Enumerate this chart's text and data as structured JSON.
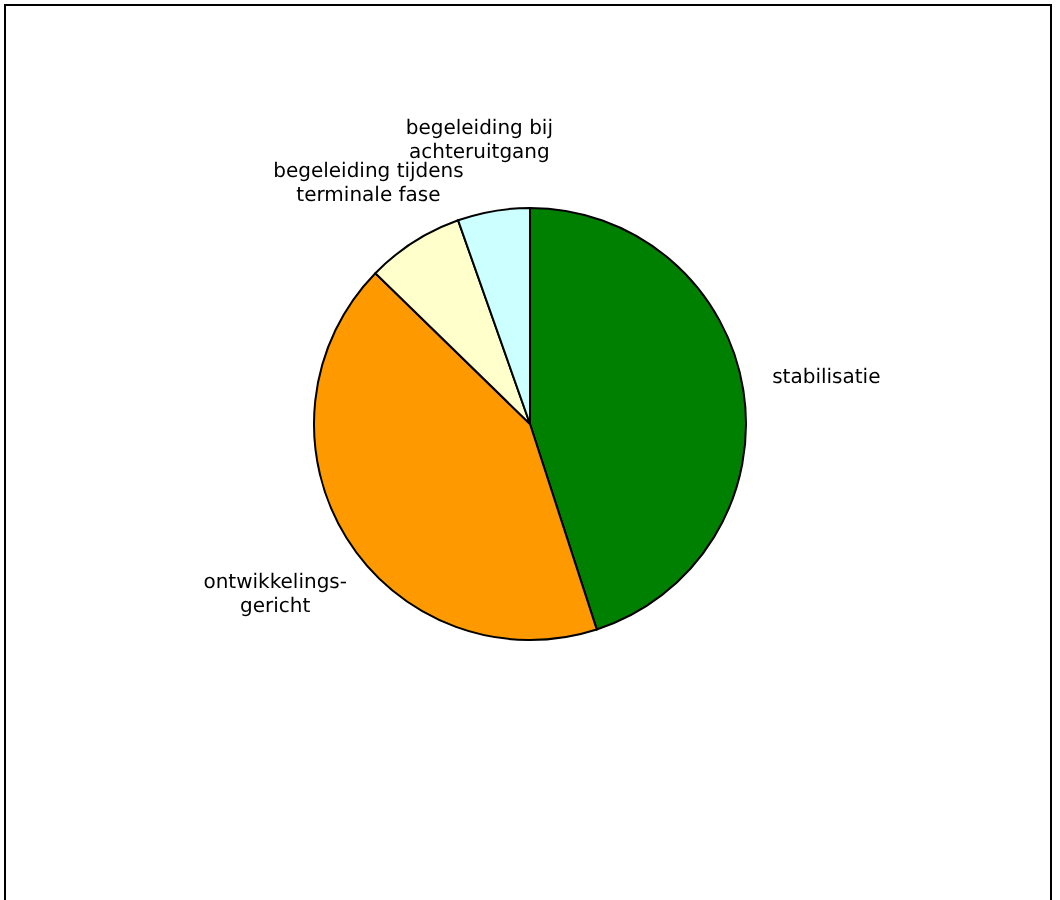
{
  "chart_data": {
    "type": "pie",
    "categories": [
      "stabilisatie",
      "ontwikkelings-\ngericht",
      "begeleiding tijdens\nterminale fase",
      "begeleiding bij\nachteruitgang"
    ],
    "values": [
      45,
      42.3,
      7.3,
      5.4
    ],
    "colors": [
      "#008000",
      "#ff9900",
      "#ffffcc",
      "#ccffff"
    ]
  }
}
